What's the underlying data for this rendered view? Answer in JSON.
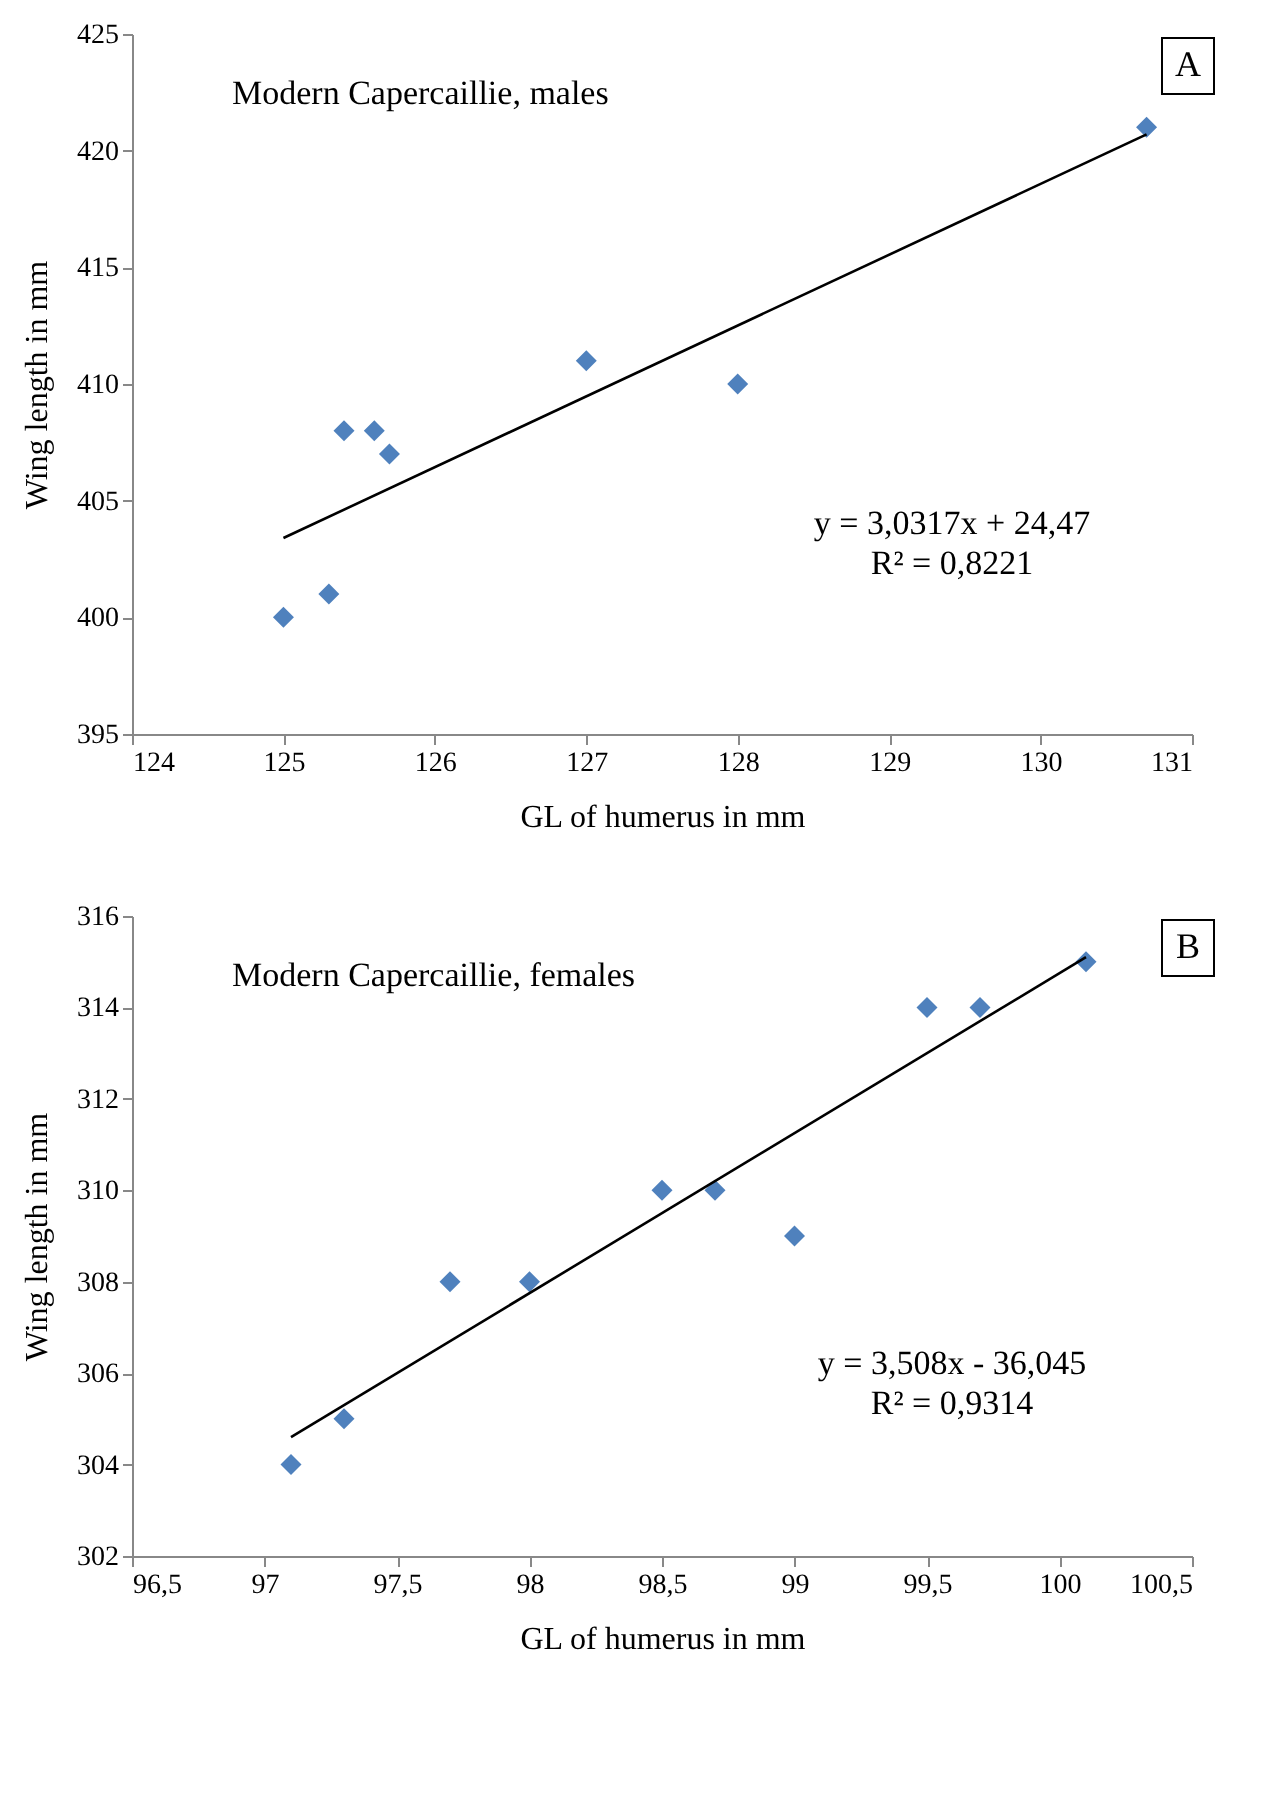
{
  "chart_data": [
    {
      "type": "scatter",
      "xlabel": "GL of humerus in mm",
      "ylabel": "Wing length in mm",
      "xlim": [
        124,
        131
      ],
      "xticks": [
        124,
        125,
        126,
        127,
        128,
        129,
        130,
        131
      ],
      "ylim": [
        395,
        425
      ],
      "yticks": [
        395,
        400,
        405,
        410,
        415,
        420,
        425
      ],
      "series": [
        {
          "color": "#4f81bd",
          "marker": "diamond",
          "x": [
            125,
            125.3,
            125.4,
            125.6,
            125.7,
            127,
            128,
            130.7
          ],
          "values": [
            400,
            401,
            408,
            408,
            407,
            411,
            410,
            421
          ]
        },
        {
          "type": "line",
          "color": "#000000",
          "marker": "none",
          "x": [
            125,
            130.7
          ],
          "values": [
            403.4,
            420.7
          ]
        }
      ],
      "annotations": [
        "A",
        "Modern Capercaillie, males",
        "y = 3,0317x + 24,47",
        "R² = 0,8221"
      ]
    },
    {
      "type": "scatter",
      "xlabel": "GL of humerus in mm",
      "ylabel": "Wing length in mm",
      "xlim": [
        96.5,
        100.5
      ],
      "xticks": [
        {
          "value": 96.5,
          "label": "96,5"
        },
        97,
        {
          "value": 97.5,
          "label": "97,5"
        },
        98,
        {
          "value": 98.5,
          "label": "98,5"
        },
        99,
        {
          "value": 99.5,
          "label": "99,5"
        },
        100,
        {
          "value": 100.5,
          "label": "100,5"
        }
      ],
      "ylim": [
        302,
        316
      ],
      "yticks": [
        302,
        304,
        306,
        308,
        310,
        312,
        314,
        316
      ],
      "series": [
        {
          "color": "#4f81bd",
          "marker": "diamond",
          "x": [
            97.1,
            97.3,
            97.7,
            98,
            98.5,
            98.7,
            99,
            99.5,
            99.7,
            100.1
          ],
          "values": [
            304,
            305,
            308,
            308,
            310,
            310,
            309,
            314,
            314,
            315
          ]
        },
        {
          "type": "line",
          "color": "#000000",
          "marker": "none",
          "x": [
            97.1,
            100.1
          ],
          "values": [
            304.6,
            315.1
          ]
        }
      ],
      "annotations": [
        "B",
        "Modern Capercaillie, females",
        "y = 3,508x - 36,045",
        "R² = 0,9314"
      ]
    }
  ]
}
